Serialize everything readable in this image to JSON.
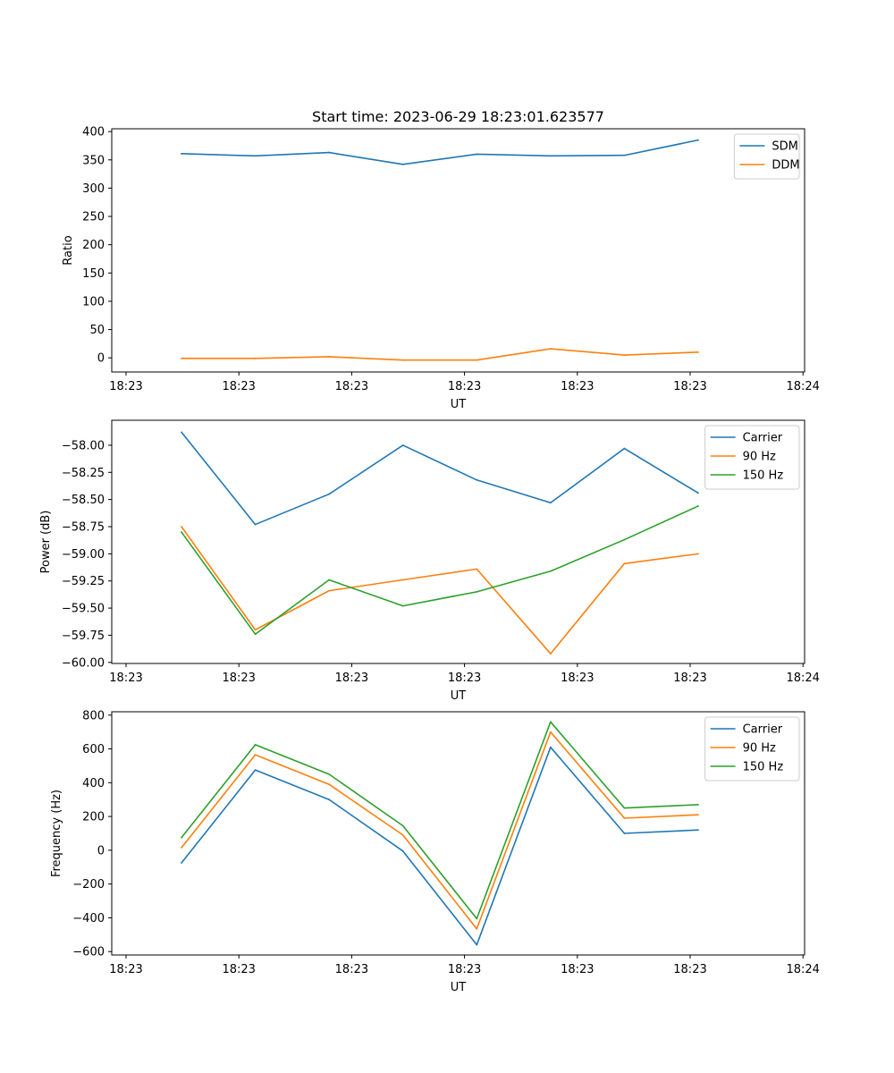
{
  "title": "Start time: 2023-06-29 18:23:01.623577",
  "chart_data": [
    {
      "type": "line",
      "xlabel": "UT",
      "ylabel": "Ratio",
      "x_tick_labels": [
        "18:23",
        "18:23",
        "18:23",
        "18:23",
        "18:23",
        "18:23",
        "18:24"
      ],
      "ylim": [
        -25,
        405
      ],
      "yticks": [
        0,
        50,
        100,
        150,
        200,
        250,
        300,
        350,
        400
      ],
      "ytick_format": 0,
      "legend_position": "top-right",
      "series": [
        {
          "name": "SDM",
          "color": "#1f77b4",
          "values": [
            361,
            357,
            363,
            342,
            360,
            357,
            358,
            385
          ]
        },
        {
          "name": "DDM",
          "color": "#ff7f0e",
          "values": [
            -1,
            -1,
            2,
            -4,
            -4,
            16,
            5,
            10
          ]
        }
      ]
    },
    {
      "type": "line",
      "xlabel": "UT",
      "ylabel": "Power (dB)",
      "x_tick_labels": [
        "18:23",
        "18:23",
        "18:23",
        "18:23",
        "18:23",
        "18:23",
        "18:24"
      ],
      "ylim": [
        -60.01,
        -57.77
      ],
      "yticks": [
        -60.0,
        -59.75,
        -59.5,
        -59.25,
        -59.0,
        -58.75,
        -58.5,
        -58.25,
        -58.0
      ],
      "ytick_format": 2,
      "legend_position": "top-right",
      "series": [
        {
          "name": "Carrier",
          "color": "#1f77b4",
          "values": [
            -57.88,
            -58.73,
            -58.45,
            -58.0,
            -58.32,
            -58.53,
            -58.03,
            -58.44
          ]
        },
        {
          "name": "90 Hz",
          "color": "#ff7f0e",
          "values": [
            -58.75,
            -59.7,
            -59.34,
            -59.24,
            -59.14,
            -59.92,
            -59.09,
            -59.0
          ]
        },
        {
          "name": "150 Hz",
          "color": "#2ca02c",
          "values": [
            -58.8,
            -59.74,
            -59.24,
            -59.48,
            -59.35,
            -59.16,
            -58.87,
            -58.56
          ]
        }
      ]
    },
    {
      "type": "line",
      "xlabel": "UT",
      "ylabel": "Frequency (Hz)",
      "x_tick_labels": [
        "18:23",
        "18:23",
        "18:23",
        "18:23",
        "18:23",
        "18:23",
        "18:24"
      ],
      "ylim": [
        -620,
        820
      ],
      "yticks": [
        -600,
        -400,
        -200,
        0,
        200,
        400,
        600,
        800
      ],
      "ytick_format": 0,
      "legend_position": "top-right",
      "series": [
        {
          "name": "Carrier",
          "color": "#1f77b4",
          "values": [
            -75,
            475,
            300,
            -5,
            -560,
            610,
            100,
            120
          ]
        },
        {
          "name": "90 Hz",
          "color": "#ff7f0e",
          "values": [
            15,
            565,
            390,
            90,
            -465,
            700,
            190,
            210
          ]
        },
        {
          "name": "150 Hz",
          "color": "#2ca02c",
          "values": [
            75,
            625,
            450,
            145,
            -405,
            760,
            250,
            270
          ]
        }
      ]
    }
  ]
}
